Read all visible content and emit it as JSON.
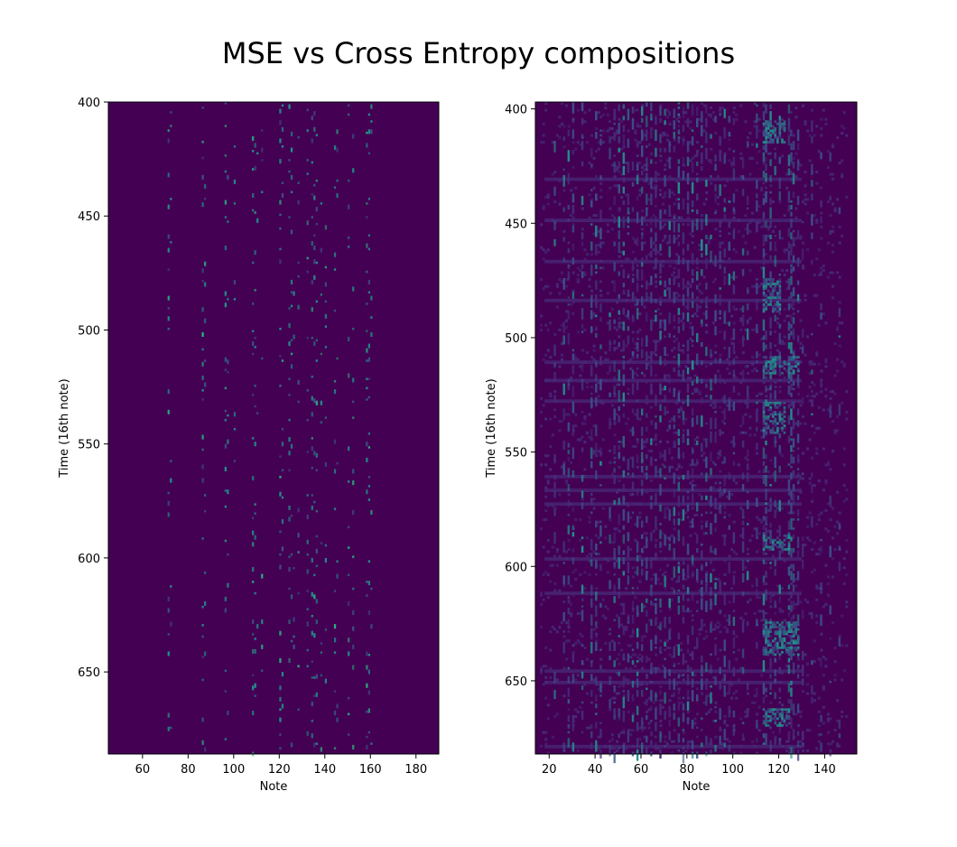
{
  "figure": {
    "title": "MSE vs Cross Entropy compositions"
  },
  "colors": {
    "background": "#440154",
    "low": "#472d7b",
    "mid": "#3b528b",
    "high": "#21918c",
    "peak": "#2ab07f"
  },
  "chart_data": [
    {
      "type": "heatmap",
      "panel": "left",
      "xlabel": "Note",
      "ylabel": "Time (16th note)",
      "xlim": [
        45,
        190
      ],
      "ylim": [
        686,
        400
      ],
      "y_inverted": true,
      "xticks": [
        60,
        80,
        100,
        120,
        140,
        160,
        180
      ],
      "yticks": [
        400,
        450,
        500,
        550,
        600,
        650
      ],
      "colormap": "viridis",
      "density": "sparse",
      "note_columns": [
        71,
        72,
        86,
        87,
        96,
        97,
        100,
        108,
        109,
        110,
        112,
        120,
        121,
        124,
        125,
        126,
        128,
        132,
        134,
        135,
        136,
        138,
        140,
        144,
        145,
        150,
        152,
        158,
        159,
        160
      ],
      "column_weights": [
        0.45,
        0.2,
        0.6,
        0.25,
        0.35,
        0.15,
        0.2,
        0.5,
        0.4,
        0.15,
        0.2,
        0.6,
        0.2,
        0.45,
        0.3,
        0.2,
        0.3,
        0.4,
        0.5,
        0.4,
        0.3,
        0.2,
        0.35,
        0.45,
        0.3,
        0.25,
        0.3,
        0.6,
        0.55,
        0.2
      ],
      "time_start": 400,
      "time_end": 686
    },
    {
      "type": "heatmap",
      "panel": "right",
      "xlabel": "Note",
      "ylabel": "Time (16th note)",
      "xlim": [
        14,
        154
      ],
      "ylim": [
        682,
        397
      ],
      "y_inverted": true,
      "xticks": [
        20,
        40,
        60,
        80,
        100,
        120,
        140
      ],
      "yticks": [
        400,
        450,
        500,
        550,
        600,
        650
      ],
      "colormap": "viridis",
      "density": "dense",
      "note_columns": [
        22,
        26,
        28,
        30,
        34,
        38,
        40,
        42,
        46,
        48,
        50,
        52,
        54,
        56,
        58,
        60,
        62,
        64,
        66,
        68,
        70,
        72,
        74,
        76,
        78,
        80,
        82,
        84,
        86,
        88,
        90,
        92,
        94,
        96,
        98,
        100,
        104,
        106,
        110,
        113,
        114,
        116,
        118,
        120,
        124,
        125,
        126,
        128,
        130,
        134,
        138,
        142,
        146
      ],
      "column_weights": [
        0.25,
        0.35,
        0.6,
        0.4,
        0.45,
        0.5,
        0.6,
        0.4,
        0.35,
        0.45,
        0.6,
        0.8,
        0.5,
        0.4,
        0.55,
        0.65,
        0.5,
        0.55,
        0.7,
        0.5,
        0.5,
        0.45,
        0.55,
        0.9,
        0.6,
        0.55,
        0.6,
        0.5,
        0.55,
        0.5,
        0.45,
        0.4,
        0.4,
        0.4,
        0.35,
        0.4,
        0.3,
        0.3,
        0.35,
        0.75,
        0.8,
        0.7,
        0.55,
        0.45,
        0.8,
        0.85,
        0.6,
        0.45,
        0.3,
        0.2,
        0.15,
        0.12,
        0.1
      ],
      "time_start": 397,
      "time_end": 682,
      "bright_blocks": [
        {
          "notes": [
            113,
            122
          ],
          "times": [
            405,
            414
          ]
        },
        {
          "notes": [
            113,
            120
          ],
          "times": [
            474,
            488
          ]
        },
        {
          "notes": [
            113,
            128
          ],
          "times": [
            508,
            515
          ]
        },
        {
          "notes": [
            113,
            122
          ],
          "times": [
            528,
            541
          ]
        },
        {
          "notes": [
            113,
            124
          ],
          "times": [
            586,
            592
          ]
        },
        {
          "notes": [
            113,
            128
          ],
          "times": [
            624,
            638
          ]
        },
        {
          "notes": [
            113,
            124
          ],
          "times": [
            662,
            669
          ]
        }
      ],
      "horizontal_bands": [
        430,
        448,
        466,
        483,
        510,
        518,
        527,
        560,
        566,
        572,
        596,
        611,
        645,
        650,
        678
      ]
    }
  ]
}
